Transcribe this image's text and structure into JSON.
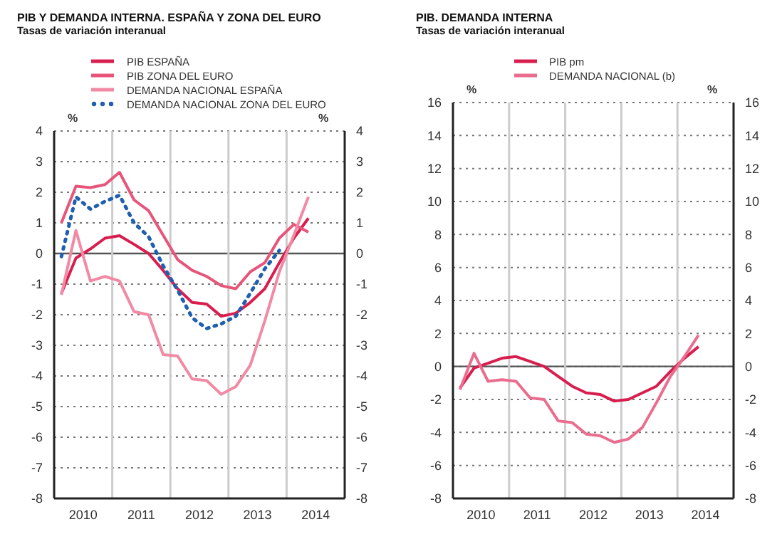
{
  "chart_data": [
    {
      "type": "line",
      "title": "PIB Y DEMANDA INTERNA. ESPAÑA Y ZONA DEL EURO",
      "subtitle": "Tasas de variación interanual",
      "ylabel": "%",
      "y2label": "%",
      "x": [
        2010.125,
        2010.375,
        2010.625,
        2010.875,
        2011.125,
        2011.375,
        2011.625,
        2011.875,
        2012.125,
        2012.375,
        2012.625,
        2012.875,
        2013.125,
        2013.375,
        2013.625,
        2013.875,
        2014.125,
        2014.375
      ],
      "series": [
        {
          "name": "PIB ESPAÑA",
          "color": "#d81e4f",
          "values": [
            -1.3,
            -0.15,
            0.15,
            0.5,
            0.58,
            0.3,
            0.0,
            -0.55,
            -1.15,
            -1.6,
            -1.65,
            -2.05,
            -1.95,
            -1.6,
            -1.15,
            -0.3,
            0.5,
            1.15
          ]
        },
        {
          "name": "PIB ZONA DEL EURO",
          "color": "#e8557a",
          "values": [
            1.0,
            2.2,
            2.15,
            2.25,
            2.65,
            1.75,
            1.4,
            0.6,
            -0.2,
            -0.55,
            -0.75,
            -1.05,
            -1.15,
            -0.6,
            -0.3,
            0.5,
            0.95,
            0.7
          ]
        },
        {
          "name": "DEMANDA NACIONAL ESPAÑA",
          "color": "#f18aa4",
          "values": [
            -1.35,
            0.75,
            -0.9,
            -0.75,
            -0.9,
            -1.9,
            -2.0,
            -3.3,
            -3.35,
            -4.1,
            -4.15,
            -4.6,
            -4.35,
            -3.65,
            -2.2,
            -0.6,
            0.6,
            1.85
          ]
        },
        {
          "name": "DEMANDA NACIONAL ZONA DEL EURO",
          "color": "#1f5fb0",
          "line_style": "dotted",
          "values": [
            -0.1,
            1.85,
            1.45,
            1.7,
            1.9,
            1.0,
            0.55,
            -0.4,
            -1.2,
            -2.1,
            -2.45,
            -2.3,
            -2.05,
            -1.3,
            -0.5,
            0.1,
            null,
            null
          ]
        }
      ],
      "xlim": [
        2010,
        2015
      ],
      "xticks": [
        {
          "value": 2010.5,
          "label": "2010"
        },
        {
          "value": 2011.5,
          "label": "2011"
        },
        {
          "value": 2012.5,
          "label": "2012"
        },
        {
          "value": 2013.5,
          "label": "2013"
        },
        {
          "value": 2014.5,
          "label": "2014"
        }
      ],
      "ylim": [
        -8,
        4
      ],
      "yticks": [
        -8,
        -7,
        -6,
        -5,
        -4,
        -3,
        -2,
        -1,
        0,
        1,
        2,
        3,
        4
      ],
      "y2lim": [
        -8,
        4
      ],
      "y2ticks": [
        -8,
        -7,
        -6,
        -5,
        -4,
        -3,
        -2,
        -1,
        0,
        1,
        2,
        3,
        4
      ],
      "ref_lines": [
        {
          "axis": "y",
          "value": 0,
          "color": "#555555"
        },
        {
          "axis": "x",
          "value": 2011,
          "color": "#cccccc"
        },
        {
          "axis": "x",
          "value": 2012,
          "color": "#cccccc"
        },
        {
          "axis": "x",
          "value": 2013,
          "color": "#cccccc"
        },
        {
          "axis": "x",
          "value": 2014,
          "color": "#cccccc"
        }
      ],
      "grid": "y",
      "legend": "top",
      "marker": "none",
      "line_style": "solid"
    },
    {
      "type": "line",
      "title": "PIB. DEMANDA INTERNA",
      "subtitle": "Tasas de variación interanual",
      "ylabel": "%",
      "y2label": "%",
      "x": [
        2010.125,
        2010.375,
        2010.625,
        2010.875,
        2011.125,
        2011.375,
        2011.625,
        2011.875,
        2012.125,
        2012.375,
        2012.625,
        2012.875,
        2013.125,
        2013.375,
        2013.625,
        2013.875,
        2014.125,
        2014.375
      ],
      "series": [
        {
          "name": "PIB pm",
          "color": "#d81e4f",
          "values": [
            -1.3,
            -0.1,
            0.2,
            0.5,
            0.6,
            0.3,
            0.0,
            -0.6,
            -1.2,
            -1.6,
            -1.7,
            -2.1,
            -2.0,
            -1.6,
            -1.2,
            -0.3,
            0.5,
            1.2
          ]
        },
        {
          "name": "DEMANDA NACIONAL (b)",
          "color": "#ea6d8f",
          "values": [
            -1.4,
            0.8,
            -0.9,
            -0.8,
            -0.9,
            -1.9,
            -2.0,
            -3.3,
            -3.4,
            -4.1,
            -4.2,
            -4.6,
            -4.4,
            -3.7,
            -2.2,
            -0.6,
            0.6,
            1.9
          ]
        }
      ],
      "xlim": [
        2010,
        2015
      ],
      "xticks": [
        {
          "value": 2010.5,
          "label": "2010"
        },
        {
          "value": 2011.5,
          "label": "2011"
        },
        {
          "value": 2012.5,
          "label": "2012"
        },
        {
          "value": 2013.5,
          "label": "2013"
        },
        {
          "value": 2014.5,
          "label": "2014"
        }
      ],
      "ylim": [
        -8,
        16
      ],
      "yticks": [
        -8,
        -6,
        -4,
        -2,
        0,
        2,
        4,
        6,
        8,
        10,
        12,
        14,
        16
      ],
      "y2lim": [
        -8,
        16
      ],
      "y2ticks": [
        -8,
        -6,
        -4,
        -2,
        0,
        2,
        4,
        6,
        8,
        10,
        12,
        14,
        16
      ],
      "ref_lines": [
        {
          "axis": "y",
          "value": 0,
          "color": "#555555"
        },
        {
          "axis": "x",
          "value": 2011,
          "color": "#cccccc"
        },
        {
          "axis": "x",
          "value": 2012,
          "color": "#cccccc"
        },
        {
          "axis": "x",
          "value": 2013,
          "color": "#cccccc"
        },
        {
          "axis": "x",
          "value": 2014,
          "color": "#cccccc"
        }
      ],
      "grid": "y",
      "legend": "top",
      "marker": "none",
      "line_style": "solid"
    }
  ]
}
